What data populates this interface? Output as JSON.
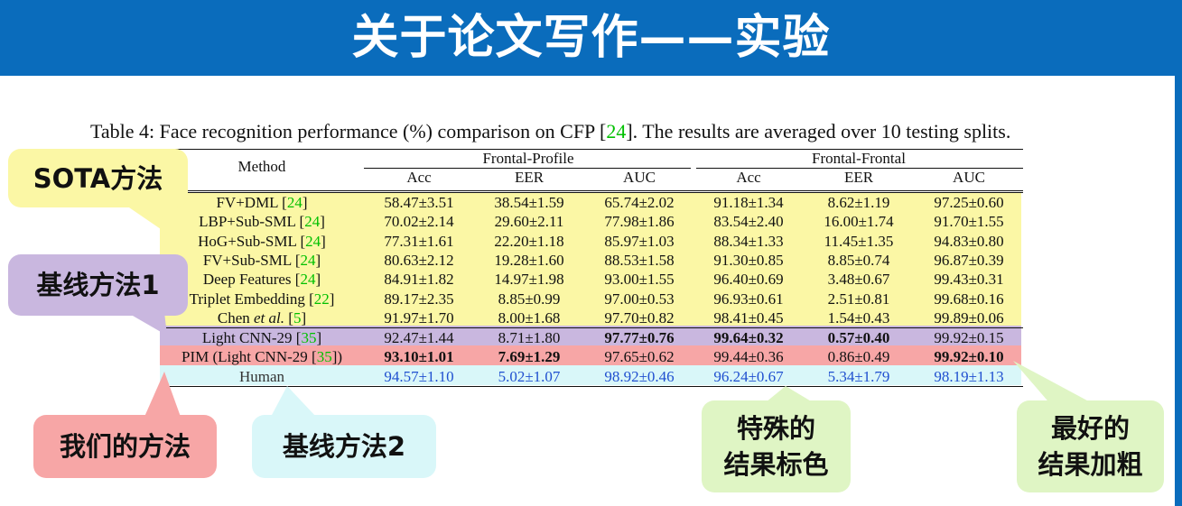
{
  "header": {
    "title": "关于论文写作——实验"
  },
  "caption": {
    "before": "Table 4: Face recognition performance (%) comparison on CFP [",
    "ref": "24",
    "after": "]. The results are averaged over 10 testing splits."
  },
  "table": {
    "method_header": "Method",
    "group_headers": [
      "Frontal-Profile",
      "Frontal-Frontal"
    ],
    "sub_headers": [
      "Acc",
      "EER",
      "AUC",
      "Acc",
      "EER",
      "AUC"
    ],
    "rows": [
      {
        "method": "FV+DML [",
        "ref": "24",
        "suffix": "]",
        "values": [
          "58.47±3.51",
          "38.54±1.59",
          "65.74±2.02",
          "91.18±1.34",
          "8.62±1.19",
          "97.25±0.60"
        ],
        "group": "sota"
      },
      {
        "method": "LBP+Sub-SML [",
        "ref": "24",
        "suffix": "]",
        "values": [
          "70.02±2.14",
          "29.60±2.11",
          "77.98±1.86",
          "83.54±2.40",
          "16.00±1.74",
          "91.70±1.55"
        ],
        "group": "sota"
      },
      {
        "method": "HoG+Sub-SML [",
        "ref": "24",
        "suffix": "]",
        "values": [
          "77.31±1.61",
          "22.20±1.18",
          "85.97±1.03",
          "88.34±1.33",
          "11.45±1.35",
          "94.83±0.80"
        ],
        "group": "sota"
      },
      {
        "method": "FV+Sub-SML [",
        "ref": "24",
        "suffix": "]",
        "values": [
          "80.63±2.12",
          "19.28±1.60",
          "88.53±1.58",
          "91.30±0.85",
          "8.85±0.74",
          "96.87±0.39"
        ],
        "group": "sota"
      },
      {
        "method": "Deep Features [",
        "ref": "24",
        "suffix": "]",
        "values": [
          "84.91±1.82",
          "14.97±1.98",
          "93.00±1.55",
          "96.40±0.69",
          "3.48±0.67",
          "99.43±0.31"
        ],
        "group": "sota"
      },
      {
        "method": "Triplet Embedding [",
        "ref": "22",
        "suffix": "]",
        "values": [
          "89.17±2.35",
          "8.85±0.99",
          "97.00±0.53",
          "96.93±0.61",
          "2.51±0.81",
          "99.68±0.16"
        ],
        "group": "sota"
      },
      {
        "method": "Chen et al. [",
        "ref": "5",
        "suffix": "]",
        "values": [
          "91.97±1.70",
          "8.00±1.68",
          "97.70±0.82",
          "98.41±0.45",
          "1.54±0.43",
          "99.89±0.06"
        ],
        "group": "sota"
      },
      {
        "method": "Light CNN-29 [",
        "ref": "35",
        "suffix": "]",
        "values": [
          "92.47±1.44",
          "8.71±1.80",
          "97.77±0.76",
          "99.64±0.32",
          "0.57±0.40",
          "99.92±0.15"
        ],
        "group": "baseline1",
        "bold": [
          false,
          false,
          true,
          true,
          true,
          false
        ]
      },
      {
        "method": "PIM (Light CNN-29 [",
        "ref": "35",
        "suffix": "])",
        "values": [
          "93.10±1.01",
          "7.69±1.29",
          "97.65±0.62",
          "99.44±0.36",
          "0.86±0.49",
          "99.92±0.10"
        ],
        "group": "ours",
        "bold": [
          true,
          true,
          false,
          false,
          false,
          true
        ]
      },
      {
        "method": "Human",
        "ref": "",
        "suffix": "",
        "values": [
          "94.57±1.10",
          "5.02±1.07",
          "98.92±0.46",
          "96.24±0.67",
          "5.34±1.79",
          "98.19±1.13"
        ],
        "group": "human"
      }
    ]
  },
  "callouts": {
    "sota": "SOTA方法",
    "baseline1": "基线方法1",
    "ours": "我们的方法",
    "baseline2": "基线方法2",
    "special": [
      "特殊的",
      "结果标色"
    ],
    "best": [
      "最好的",
      "结果加粗"
    ]
  },
  "colors": {
    "header_bg": "#0a6cbc",
    "sota": "#fbf7a5",
    "baseline1": "#c9b7df",
    "ours": "#f7a6a6",
    "human": "#d9f7f9",
    "green_callout": "#dff5c4",
    "human_text": "#2050d0",
    "ref_green": "#00c000"
  }
}
